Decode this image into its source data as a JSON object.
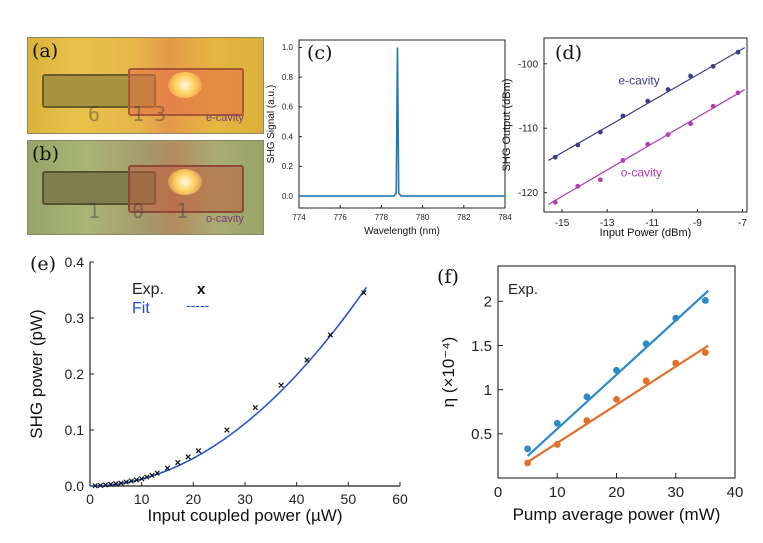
{
  "panels": {
    "a": {
      "label": "(a)",
      "cavity": "e-cavity",
      "etched": "6 13"
    },
    "b": {
      "label": "(b)",
      "cavity": "o-cavity",
      "etched": "1 0 1"
    },
    "c": {
      "label": "(c)"
    },
    "d": {
      "label": "(d)"
    },
    "e": {
      "label": "(e)"
    },
    "f": {
      "label": "(f)"
    }
  },
  "colors": {
    "spectrum": "#1f77b4",
    "e_cavity": "#3c3c8c",
    "o_cavity": "#b03cb0",
    "fit_e": "#1f4fd0",
    "f_series1": "#2a8ac8",
    "f_series2": "#e0702a"
  },
  "chart_data": [
    {
      "id": "c",
      "type": "line",
      "xlabel": "Wavelength (nm)",
      "ylabel": "SHG Signal (a.u.)",
      "xlim": [
        774,
        784
      ],
      "ylim": [
        -0.08,
        1.05
      ],
      "xticks": [
        774,
        776,
        778,
        780,
        782,
        784
      ],
      "yticks": [
        0.0,
        0.2,
        0.4,
        0.6,
        0.8,
        1.0
      ],
      "ytick_labels": [
        "0.0",
        "0.2",
        "0.4",
        "0.6",
        "0.8",
        "1.0"
      ],
      "series": [
        {
          "x": [
            774,
            778.6,
            778.72,
            778.78,
            778.84,
            778.96,
            784
          ],
          "y": [
            0,
            0,
            0.02,
            1.0,
            0.02,
            0,
            0
          ]
        }
      ]
    },
    {
      "id": "d",
      "type": "scatter",
      "xlabel": "Input Power (dBm)",
      "ylabel": "SHG Output (dBm)",
      "xlim": [
        -15.8,
        -6.8
      ],
      "ylim": [
        -123,
        -96
      ],
      "xticks": [
        -15,
        -13,
        -11,
        -9,
        -7
      ],
      "yticks": [
        -100,
        -110,
        -120
      ],
      "series": [
        {
          "name": "e-cavity",
          "x": [
            -15.3,
            -14.3,
            -13.3,
            -12.3,
            -11.2,
            -10.3,
            -9.3,
            -8.3,
            -7.2
          ],
          "y": [
            -114.5,
            -112.6,
            -110.6,
            -108.1,
            -105.8,
            -104.0,
            -101.9,
            -100.4,
            -98.2
          ],
          "fit": [
            [
              -15.6,
              -115.0
            ],
            [
              -6.9,
              -97.5
            ]
          ]
        },
        {
          "name": "o-cavity",
          "x": [
            -15.3,
            -14.3,
            -13.3,
            -12.3,
            -11.2,
            -10.3,
            -9.3,
            -8.3,
            -7.2
          ],
          "y": [
            -121.5,
            -119.0,
            -118.0,
            -115.0,
            -112.5,
            -111.0,
            -109.3,
            -106.6,
            -104.5
          ],
          "fit": [
            [
              -15.6,
              -121.8
            ],
            [
              -6.9,
              -104.0
            ]
          ]
        }
      ]
    },
    {
      "id": "e",
      "type": "scatter",
      "xlabel": "Input coupled power (µW)",
      "ylabel": "SHG power (pW)",
      "xlim": [
        0,
        60
      ],
      "ylim": [
        0,
        0.4
      ],
      "xticks": [
        0,
        10,
        20,
        30,
        40,
        50,
        60
      ],
      "yticks": [
        0.0,
        0.1,
        0.2,
        0.3,
        0.4
      ],
      "ytick_labels": [
        "0.0",
        "0.1",
        "0.2",
        "0.3",
        "0.4"
      ],
      "legend": [
        {
          "label": "Exp.",
          "symbol": "x"
        },
        {
          "label": "Fit",
          "symbol": "-----"
        }
      ],
      "series": [
        {
          "name": "Exp.",
          "x": [
            1,
            2,
            3,
            4,
            5,
            6,
            7,
            8,
            9,
            10,
            11,
            12,
            13,
            15,
            17,
            19,
            21,
            26.5,
            32,
            37,
            42,
            46.5,
            53
          ],
          "y": [
            0.0005,
            0.001,
            0.002,
            0.003,
            0.004,
            0.005,
            0.007,
            0.009,
            0.011,
            0.013,
            0.016,
            0.019,
            0.023,
            0.032,
            0.042,
            0.052,
            0.063,
            0.1,
            0.14,
            0.18,
            0.225,
            0.27,
            0.345
          ]
        },
        {
          "name": "Fit",
          "coef": 0.000124,
          "exponent": 2,
          "xrange": [
            0,
            53.5
          ]
        }
      ]
    },
    {
      "id": "f",
      "type": "scatter",
      "xlabel": "Pump average power (mW)",
      "ylabel": "η (×10⁻⁴)",
      "annotation": "Exp.",
      "xlim": [
        0,
        40
      ],
      "ylim": [
        0,
        2.4
      ],
      "xticks": [
        0,
        10,
        20,
        30,
        40
      ],
      "yticks": [
        0.5,
        1,
        1.5,
        2
      ],
      "series": [
        {
          "x": [
            5,
            10,
            15,
            20,
            25,
            30,
            35
          ],
          "y": [
            0.33,
            0.62,
            0.92,
            1.22,
            1.52,
            1.81,
            2.01
          ],
          "fit": [
            [
              5,
              0.25
            ],
            [
              35.5,
              2.12
            ]
          ]
        },
        {
          "x": [
            5,
            10,
            15,
            20,
            25,
            30,
            35
          ],
          "y": [
            0.17,
            0.38,
            0.65,
            0.89,
            1.1,
            1.3,
            1.42
          ],
          "fit": [
            [
              5,
              0.18
            ],
            [
              35.5,
              1.5
            ]
          ]
        }
      ]
    }
  ]
}
